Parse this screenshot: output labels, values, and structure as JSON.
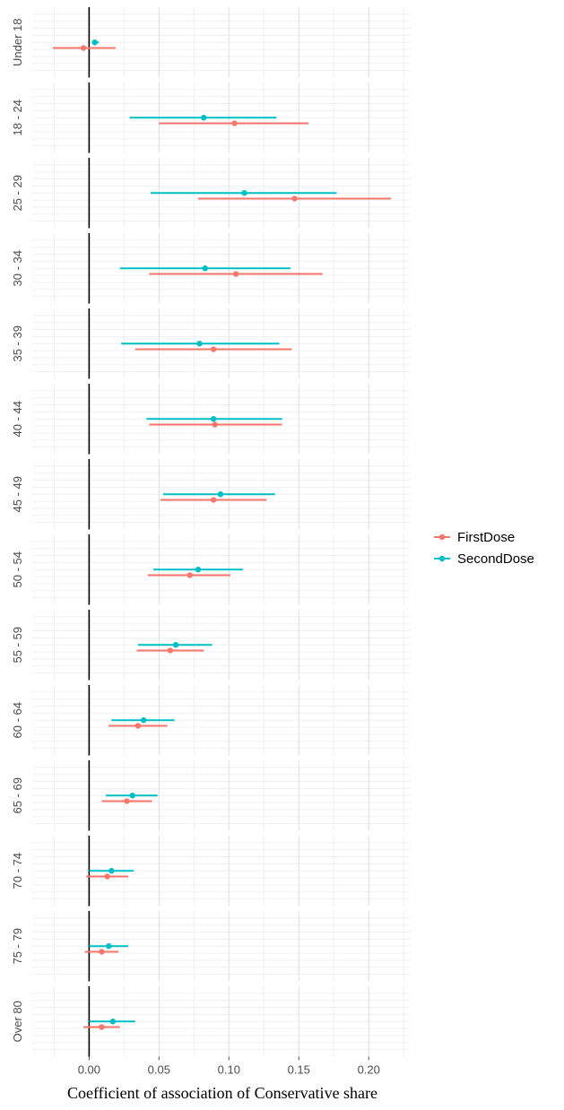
{
  "chart_data": {
    "type": "scatter",
    "subtype": "faceted forest plot with horizontal error bars",
    "title": "",
    "xlabel": "Coefficient of association of Conservative share",
    "ylabel": "",
    "xlim": [
      -0.04,
      0.23
    ],
    "x_ticks": [
      0.0,
      0.05,
      0.1,
      0.15,
      0.2
    ],
    "x_tick_labels": [
      "0.00",
      "0.05",
      "0.10",
      "0.15",
      "0.20"
    ],
    "reference_line": 0,
    "grid": true,
    "legend_position": "right",
    "facets": [
      "Under 18",
      "18 - 24",
      "25 - 29",
      "30 - 34",
      "35 - 39",
      "40 - 44",
      "45 - 49",
      "50 - 54",
      "55 - 59",
      "60 - 64",
      "65 - 69",
      "70 - 74",
      "75 - 79",
      "Over 80"
    ],
    "series": [
      {
        "name": "FirstDose",
        "color": "#F8766D",
        "estimates": [
          -0.004,
          0.104,
          0.147,
          0.105,
          0.089,
          0.09,
          0.089,
          0.072,
          0.058,
          0.035,
          0.027,
          0.013,
          0.009,
          0.009
        ],
        "lower": [
          -0.026,
          0.05,
          0.078,
          0.043,
          0.033,
          0.043,
          0.051,
          0.042,
          0.034,
          0.014,
          0.009,
          -0.002,
          -0.003,
          -0.004
        ],
        "upper": [
          0.019,
          0.157,
          0.216,
          0.167,
          0.145,
          0.138,
          0.127,
          0.101,
          0.082,
          0.056,
          0.045,
          0.028,
          0.021,
          0.022
        ]
      },
      {
        "name": "SecondDose",
        "color": "#00BFC4",
        "estimates": [
          0.004,
          0.082,
          0.111,
          0.083,
          0.079,
          0.089,
          0.094,
          0.078,
          0.062,
          0.039,
          0.031,
          0.016,
          0.014,
          0.017
        ],
        "lower": [
          0.002,
          0.029,
          0.044,
          0.022,
          0.023,
          0.041,
          0.053,
          0.046,
          0.035,
          0.016,
          0.012,
          0.0,
          0.0,
          0.0
        ],
        "upper": [
          0.007,
          0.134,
          0.177,
          0.144,
          0.136,
          0.138,
          0.133,
          0.11,
          0.088,
          0.061,
          0.049,
          0.032,
          0.028,
          0.033
        ]
      }
    ]
  }
}
